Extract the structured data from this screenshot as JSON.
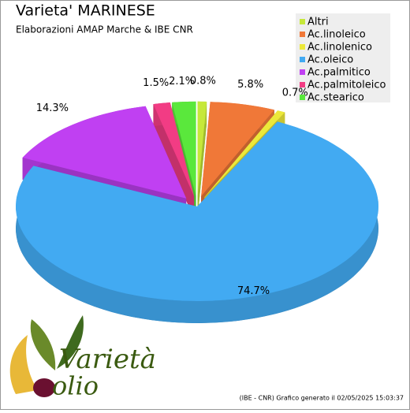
{
  "chart_data": {
    "type": "pie",
    "title": "Varieta' MARINESE",
    "subtitle": "Elaborazioni AMAP Marche & IBE CNR",
    "categories": [
      "Altri",
      "Ac.linoleico",
      "Ac.linolenico",
      "Ac.oleico",
      "Ac.palmitico",
      "Ac.palmitoleico",
      "Ac.stearico"
    ],
    "values": [
      0.8,
      5.8,
      0.7,
      74.7,
      14.3,
      1.5,
      2.1
    ],
    "value_labels": [
      "0.8%",
      "5.8%",
      "0.7%",
      "74.7%",
      "14.3%",
      "1.5%",
      "2.1%"
    ],
    "colors": [
      "#c6e83a",
      "#f07838",
      "#ece83a",
      "#42aaf2",
      "#c040f2",
      "#f23c84",
      "#5ae83c"
    ],
    "legend": "top-right",
    "footer": "(IBE - CNR) Grafico generato il 02/05/2025 15:03:37",
    "logo": {
      "top": "Varietà",
      "bottom": "olio"
    }
  }
}
